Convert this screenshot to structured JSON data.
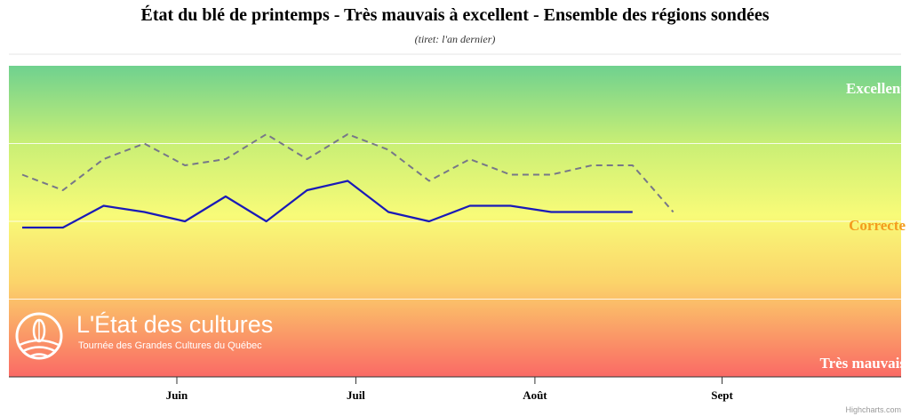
{
  "chart_data": {
    "type": "line",
    "title": "État du blé de printemps - Très mauvais à excellent - Ensemble des régions sondées",
    "subtitle": "(tiret: l'an dernier)",
    "band_labels": {
      "top": "Excellent",
      "middle": "Correcte",
      "bottom": "Très mauvais"
    },
    "x_ticks": [
      {
        "label": "Juin",
        "x": 19
      },
      {
        "label": "Juil",
        "x": 41
      },
      {
        "label": "Août",
        "x": 63
      },
      {
        "label": "Sept",
        "x": 86
      }
    ],
    "xlim": [
      0,
      108
    ],
    "ylim": [
      0,
      100
    ],
    "grid_y": [
      25,
      50,
      75
    ],
    "series": [
      {
        "style": "solid",
        "color": "#1a1ab8",
        "x": [
          0,
          5,
          10,
          15,
          20,
          25,
          30,
          35,
          40,
          45,
          50,
          55,
          60,
          65,
          70,
          75
        ],
        "y": [
          48,
          48,
          55,
          53,
          50,
          58,
          50,
          60,
          63,
          53,
          50,
          55,
          55,
          53,
          53,
          53
        ]
      },
      {
        "style": "dashed",
        "color": "#777788",
        "x": [
          0,
          5,
          10,
          15,
          20,
          25,
          30,
          35,
          40,
          45,
          50,
          55,
          60,
          65,
          70,
          75,
          80
        ],
        "y": [
          65,
          60,
          70,
          75,
          68,
          70,
          78,
          70,
          78,
          73,
          63,
          70,
          65,
          65,
          68,
          68,
          53
        ]
      }
    ]
  },
  "logo": {
    "title": "L'État des cultures",
    "subtitle": "Tournée des Grandes Cultures du Québec"
  },
  "credits": "Highcharts.com"
}
